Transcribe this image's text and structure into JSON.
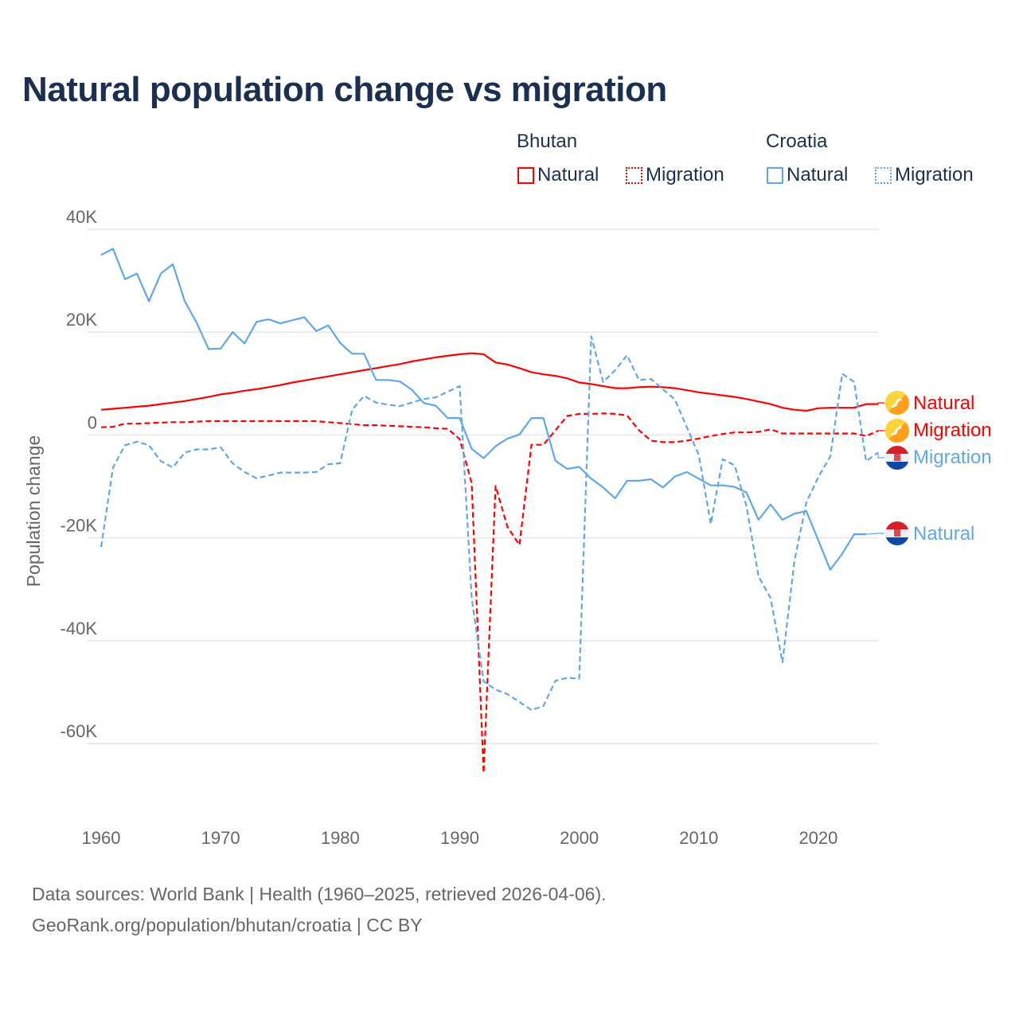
{
  "title": "Natural population change vs migration",
  "legend": {
    "groups": [
      {
        "name": "Bhutan",
        "items": [
          "Natural",
          "Migration"
        ]
      },
      {
        "name": "Croatia",
        "items": [
          "Natural",
          "Migration"
        ]
      }
    ]
  },
  "colors": {
    "bhutan": "#ff0000",
    "croatia": "#5ea8ea",
    "title": "#1b3050"
  },
  "footer": {
    "line1": "Data sources: World Bank | Health (1960–2025, retrieved 2026-04-06).",
    "line2": "GeoRank.org/population/bhutan/croatia | CC BY"
  },
  "end_labels": {
    "bhutan_natural": "Natural",
    "bhutan_migration": "Migration",
    "croatia_migration": "Migration",
    "croatia_natural": "Natural"
  },
  "chart_data": {
    "type": "line",
    "title": "Natural population change vs migration",
    "xlabel": "",
    "ylabel": "Population change",
    "xlim": [
      1960,
      2025
    ],
    "ylim": [
      -60000,
      40000
    ],
    "x_ticks": [
      "1960",
      "1970",
      "1980",
      "1990",
      "2000",
      "2010",
      "2020"
    ],
    "y_ticks": [
      {
        "v": 40,
        "label": "40K"
      },
      {
        "v": 20,
        "label": "20K"
      },
      {
        "v": 0,
        "label": "0"
      },
      {
        "v": -20,
        "label": "-20K"
      },
      {
        "v": -40,
        "label": "-40K"
      },
      {
        "v": -60,
        "label": "-60K"
      }
    ],
    "units": "thousands",
    "grid": true,
    "legend_position": "top-right",
    "x_start": 1960,
    "series": [
      {
        "id": "bhutan_natural",
        "name": "Bhutan Natural",
        "color": "#ff0000",
        "dash": false,
        "values": [
          4.9,
          5.1,
          5.3,
          5.5,
          5.7,
          6.0,
          6.3,
          6.6,
          7.0,
          7.4,
          7.9,
          8.2,
          8.6,
          8.9,
          9.3,
          9.7,
          10.2,
          10.6,
          11.0,
          11.4,
          11.8,
          12.2,
          12.6,
          13.0,
          13.4,
          13.8,
          14.3,
          14.7,
          15.1,
          15.4,
          15.7,
          15.9,
          15.7,
          14.1,
          13.7,
          13.0,
          12.2,
          11.8,
          11.5,
          11.0,
          10.2,
          9.9,
          9.5,
          9.1,
          9.1,
          9.3,
          9.4,
          9.3,
          9.1,
          8.7,
          8.3,
          8.0,
          7.7,
          7.4,
          7.0,
          6.5,
          6.0,
          5.3,
          4.9,
          4.7,
          5.2,
          5.3,
          5.3,
          5.3,
          6.0,
          6.0
        ]
      },
      {
        "id": "bhutan_migration",
        "name": "Bhutan Migration",
        "color": "#ff0000",
        "dash": true,
        "values": [
          1.5,
          1.6,
          2.2,
          2.2,
          2.3,
          2.4,
          2.5,
          2.5,
          2.6,
          2.7,
          2.7,
          2.7,
          2.7,
          2.7,
          2.7,
          2.7,
          2.7,
          2.7,
          2.7,
          2.5,
          2.3,
          2.1,
          1.9,
          1.9,
          1.8,
          1.7,
          1.6,
          1.5,
          1.3,
          1.2,
          -0.8,
          -9.4,
          -65.7,
          -9.9,
          -17.9,
          -21.4,
          -1.9,
          -1.9,
          0.9,
          3.7,
          4.1,
          4.1,
          4.2,
          4.1,
          3.8,
          0.9,
          -1.1,
          -1.4,
          -1.4,
          -1.1,
          -0.7,
          -0.2,
          0.2,
          0.5,
          0.5,
          0.6,
          1.1,
          0.3,
          0.3,
          0.3,
          0.3,
          0.3,
          0.3,
          0.3,
          -0.2,
          0.8
        ]
      },
      {
        "id": "croatia_natural",
        "name": "Croatia Natural",
        "color": "#5ea8ea",
        "dash": false,
        "values": [
          35.0,
          36.2,
          30.3,
          31.4,
          26.0,
          31.4,
          33.2,
          26.0,
          21.8,
          16.7,
          16.8,
          20.0,
          17.8,
          22.0,
          22.5,
          21.7,
          22.3,
          22.9,
          20.2,
          21.3,
          17.9,
          15.8,
          15.8,
          10.7,
          10.7,
          10.4,
          8.8,
          6.2,
          5.7,
          3.3,
          3.3,
          -2.7,
          -4.5,
          -2.2,
          -0.7,
          0.1,
          3.3,
          3.3,
          -5.0,
          -6.6,
          -6.2,
          -8.5,
          -10.2,
          -12.3,
          -8.9,
          -8.9,
          -8.6,
          -10.2,
          -8.1,
          -7.2,
          -8.5,
          -9.8,
          -9.8,
          -10.1,
          -11.2,
          -16.5,
          -13.5,
          -16.5,
          -15.3,
          -14.8,
          -20.5,
          -26.2,
          -23.1,
          -19.3,
          -19.3,
          null
        ]
      },
      {
        "id": "croatia_migration",
        "name": "Croatia Migration",
        "color": "#5ea8ea",
        "dash": true,
        "values": [
          -21.8,
          -6.3,
          -2.0,
          -1.3,
          -2.0,
          -5.1,
          -6.3,
          -3.4,
          -2.8,
          -2.8,
          -2.4,
          -5.5,
          -7.2,
          -8.4,
          -7.9,
          -7.3,
          -7.3,
          -7.3,
          -7.2,
          -5.7,
          -5.5,
          4.9,
          7.6,
          6.3,
          5.9,
          5.6,
          6.3,
          7.0,
          7.3,
          8.4,
          9.5,
          -31.7,
          -47.9,
          -49.5,
          -50.4,
          -51.9,
          -53.5,
          -52.7,
          -47.8,
          -47.2,
          -47.4,
          19.2,
          10.3,
          12.6,
          15.5,
          10.7,
          10.9,
          8.9,
          6.9,
          1.5,
          -3.9,
          -17.3,
          -4.7,
          -5.9,
          -13.9,
          -27.5,
          -31.7,
          -44.2,
          -24.5,
          -13.1,
          -8.2,
          -4.2,
          11.9,
          10.3,
          -5.1,
          -3.4
        ]
      }
    ]
  }
}
